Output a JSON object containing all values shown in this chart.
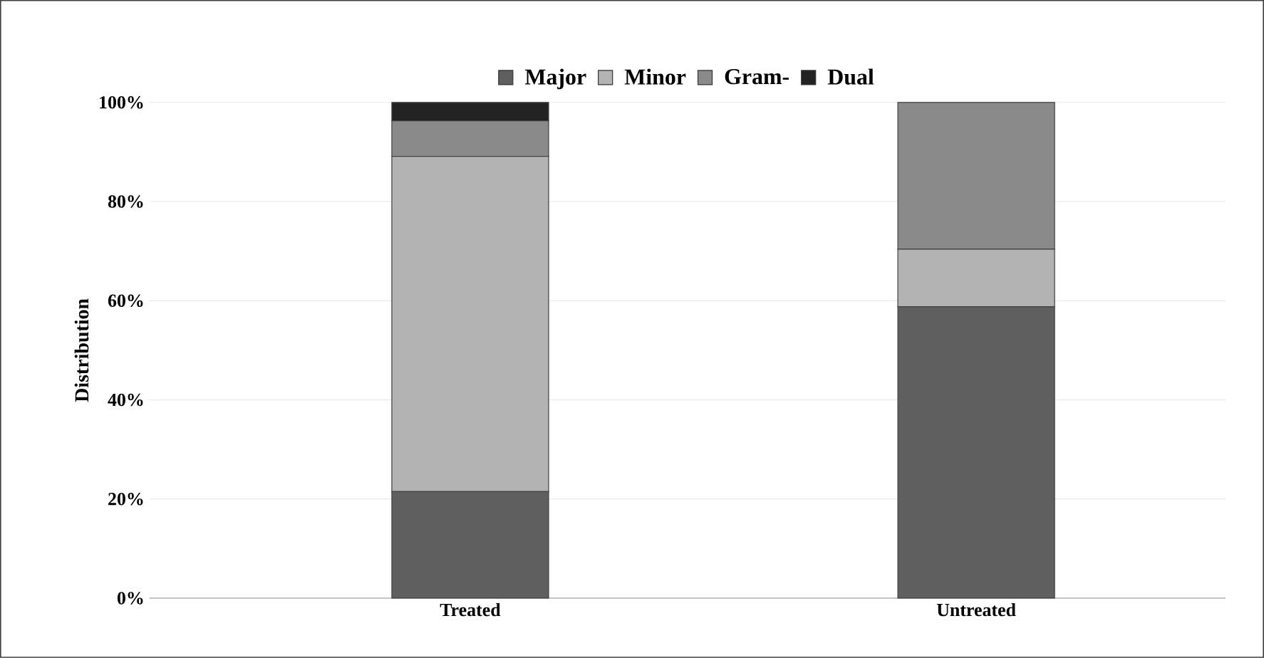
{
  "chart_data": {
    "type": "bar",
    "stacked": true,
    "ylabel": "Distribution",
    "categories": [
      "Treated",
      "Untreated"
    ],
    "series": [
      {
        "name": "Major",
        "color": "#5f5f5f",
        "values": [
          21.5,
          58.8
        ]
      },
      {
        "name": "Minor",
        "color": "#b3b3b3",
        "values": [
          67.6,
          11.6
        ]
      },
      {
        "name": "Gram-",
        "color": "#8a8a8a",
        "values": [
          7.2,
          29.6
        ]
      },
      {
        "name": "Dual",
        "color": "#222222",
        "values": [
          3.7,
          0
        ]
      }
    ],
    "ylim": [
      0,
      100
    ],
    "yticks": [
      {
        "value": 0,
        "label": "0%"
      },
      {
        "value": 20,
        "label": "20%"
      },
      {
        "value": 40,
        "label": "40%"
      },
      {
        "value": 60,
        "label": "60%"
      },
      {
        "value": 80,
        "label": "80%"
      },
      {
        "value": 100,
        "label": "100%"
      }
    ],
    "grid": "y",
    "legend": "top"
  }
}
